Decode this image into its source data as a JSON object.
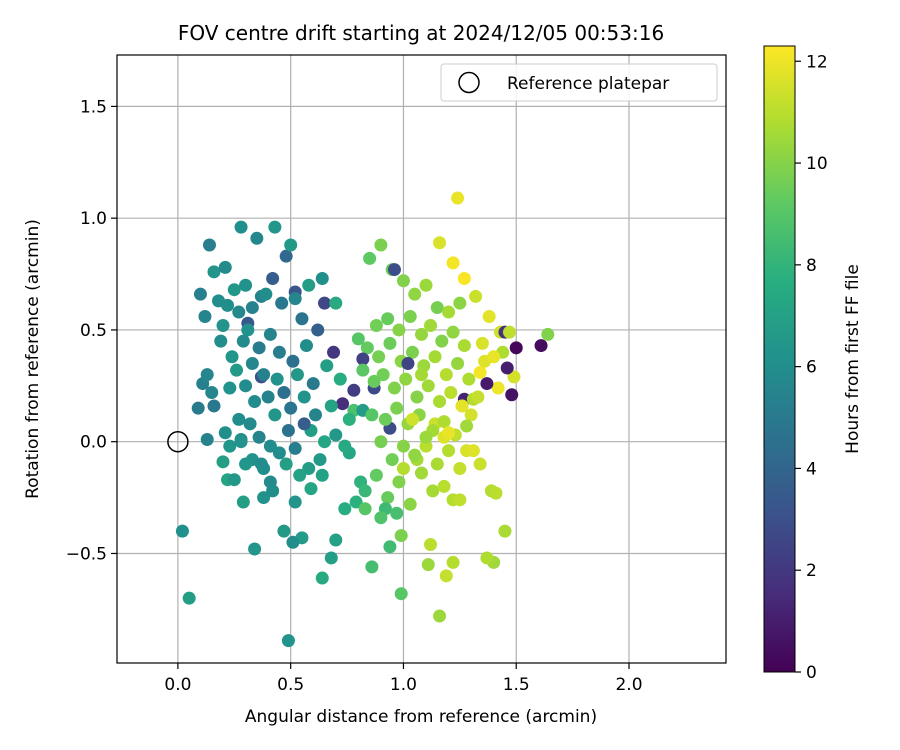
{
  "chart_data": {
    "type": "scatter",
    "title": "FOV centre drift starting at 2024/12/05 00:53:16",
    "xlabel": "Angular distance from reference (arcmin)",
    "ylabel": "Rotation from reference (arcmin)",
    "xlim": [
      -0.27,
      2.43
    ],
    "ylim": [
      -0.99,
      1.73
    ],
    "xticks": [
      0.0,
      0.5,
      1.0,
      1.5,
      2.0
    ],
    "xtick_labels": [
      "0.0",
      "0.5",
      "1.0",
      "1.5",
      "2.0"
    ],
    "yticks": [
      -0.5,
      0.0,
      0.5,
      1.0,
      1.5
    ],
    "ytick_labels": [
      "−0.5",
      "0.0",
      "0.5",
      "1.0",
      "1.5"
    ],
    "grid": true,
    "legend": {
      "position": "top-right",
      "entries": [
        "Reference platepar"
      ]
    },
    "reference_point": {
      "x": 0.0,
      "y": 0.0
    },
    "colorbar": {
      "label": "Hours from first FF file",
      "range": [
        0,
        12.3
      ],
      "ticks": [
        0,
        2,
        4,
        6,
        8,
        10,
        12
      ],
      "tick_labels": [
        "0",
        "2",
        "4",
        "6",
        "8",
        "10",
        "12"
      ],
      "colormap": "viridis"
    },
    "series": [
      {
        "x": [
          0.14,
          0.16,
          0.21,
          0.28,
          0.35,
          0.43,
          0.5,
          0.48,
          0.42,
          0.37,
          0.3,
          0.25,
          0.22,
          0.18,
          0.1,
          0.12,
          0.2,
          0.27,
          0.33,
          0.39,
          0.46,
          0.52,
          0.58,
          0.64,
          0.7,
          0.31,
          0.29,
          0.41,
          0.55,
          0.62,
          0.36,
          0.24,
          0.19,
          0.45,
          0.51,
          0.57,
          0.33,
          0.38,
          0.44,
          0.26,
          0.3,
          0.47,
          0.53,
          0.6,
          0.66,
          0.72,
          0.4,
          0.34,
          0.23,
          0.15,
          0.5,
          0.56,
          0.61,
          0.68,
          0.76,
          0.82,
          0.27,
          0.32,
          0.43,
          0.49,
          0.36,
          0.41,
          0.59,
          0.65,
          0.7,
          0.74,
          0.21,
          0.28,
          0.45,
          0.52,
          0.63,
          0.48,
          0.38,
          0.3,
          0.54,
          0.58
        ],
        "y": [
          0.88,
          0.76,
          0.78,
          0.96,
          0.91,
          0.96,
          0.88,
          0.83,
          0.73,
          0.65,
          0.7,
          0.68,
          0.61,
          0.63,
          0.66,
          0.56,
          0.52,
          0.58,
          0.6,
          0.66,
          0.62,
          0.64,
          0.7,
          0.73,
          0.62,
          0.5,
          0.45,
          0.48,
          0.55,
          0.5,
          0.42,
          0.38,
          0.45,
          0.4,
          0.36,
          0.43,
          0.35,
          0.3,
          0.28,
          0.32,
          0.25,
          0.22,
          0.3,
          0.26,
          0.34,
          0.28,
          0.2,
          0.18,
          0.24,
          0.22,
          0.15,
          0.2,
          0.12,
          0.16,
          0.1,
          0.14,
          0.1,
          0.08,
          0.12,
          0.05,
          0.02,
          -0.02,
          0.05,
          0.0,
          0.03,
          -0.02,
          0.04,
          0.0,
          -0.05,
          -0.03,
          -0.08,
          -0.1,
          -0.12,
          -0.1,
          -0.15,
          -0.12
        ],
        "colors": [
          5.2,
          6.3,
          5.8,
          6.1,
          5.6,
          6.4,
          6.6,
          4.2,
          3.6,
          5.4,
          6.2,
          6.5,
          6.0,
          5.9,
          5.3,
          5.5,
          6.3,
          5.7,
          5.4,
          6.0,
          4.9,
          5.6,
          6.8,
          6.1,
          7.4,
          6.2,
          5.8,
          5.5,
          4.7,
          3.8,
          5.1,
          6.4,
          5.9,
          5.2,
          4.5,
          6.0,
          5.6,
          5.3,
          6.2,
          6.6,
          5.9,
          4.4,
          6.5,
          5.0,
          6.9,
          7.6,
          5.4,
          5.9,
          6.2,
          5.6,
          4.8,
          6.3,
          5.5,
          7.1,
          7.8,
          6.7,
          6.0,
          5.8,
          6.4,
          4.6,
          5.5,
          5.9,
          6.8,
          7.2,
          6.5,
          7.4,
          6.1,
          6.3,
          5.9,
          5.2,
          6.6,
          6.9,
          6.1,
          6.4,
          7.0,
          6.8
        ]
      },
      {
        "x": [
          0.02,
          0.13,
          0.05,
          0.09,
          0.11,
          0.13,
          0.16,
          0.2,
          0.22,
          0.25,
          0.29,
          0.34,
          0.38,
          0.42,
          0.47,
          0.49,
          0.51,
          0.55,
          0.59,
          0.64,
          0.68,
          0.7,
          0.74,
          0.79,
          0.83,
          0.86,
          0.9,
          0.94,
          0.97,
          0.99,
          0.28,
          0.37,
          0.52,
          0.81,
          0.92,
          0.76,
          0.64,
          0.33,
          0.23,
          0.41
        ],
        "y": [
          -0.4,
          0.01,
          -0.7,
          0.15,
          0.26,
          0.3,
          0.16,
          -0.09,
          -0.17,
          -0.17,
          -0.27,
          -0.48,
          -0.25,
          -0.22,
          -0.4,
          -0.89,
          -0.45,
          -0.43,
          -0.21,
          -0.61,
          -0.52,
          -0.44,
          -0.3,
          -0.27,
          -0.22,
          -0.56,
          -0.34,
          -0.47,
          -0.32,
          -0.68,
          0.01,
          -0.1,
          -0.27,
          -0.18,
          -0.3,
          -0.05,
          -0.15,
          -0.08,
          -0.02,
          -0.18
        ],
        "colors": [
          6.1,
          5.4,
          6.8,
          5.0,
          5.3,
          5.6,
          4.9,
          6.9,
          7.1,
          6.5,
          6.8,
          6.4,
          6.2,
          6.0,
          6.6,
          6.3,
          6.0,
          6.7,
          7.2,
          7.4,
          6.9,
          7.0,
          7.6,
          7.8,
          8.2,
          8.5,
          8.8,
          8.4,
          8.6,
          9.0,
          6.0,
          5.9,
          6.3,
          7.9,
          8.3,
          7.3,
          7.0,
          6.2,
          6.4,
          5.8
        ]
      },
      {
        "x": [
          0.9,
          0.95,
          1.0,
          1.05,
          1.1,
          1.15,
          1.2,
          1.25,
          0.85,
          0.88,
          0.93,
          0.98,
          1.03,
          1.08,
          1.12,
          1.17,
          1.22,
          1.27,
          0.8,
          0.84,
          0.89,
          0.94,
          0.99,
          1.04,
          1.09,
          1.14,
          1.19,
          1.24,
          1.29,
          0.82,
          0.87,
          0.91,
          0.96,
          1.01,
          1.06,
          1.11,
          1.16,
          1.21,
          1.26,
          1.31,
          0.78,
          0.86,
          0.92,
          0.97,
          1.02,
          1.07,
          1.13,
          1.18,
          1.23,
          1.28,
          0.9,
          1.0,
          1.1,
          1.2,
          0.95,
          1.05,
          1.15,
          1.25,
          0.88,
          0.98,
          1.08,
          1.18,
          0.93,
          1.03,
          1.13,
          0.83,
          0.99,
          1.11,
          1.22
        ],
        "y": [
          0.88,
          0.77,
          0.72,
          0.66,
          0.7,
          0.6,
          0.58,
          0.62,
          0.82,
          0.52,
          0.55,
          0.5,
          0.56,
          0.48,
          0.52,
          0.45,
          0.49,
          0.43,
          0.46,
          0.42,
          0.38,
          0.44,
          0.36,
          0.4,
          0.34,
          0.38,
          0.3,
          0.35,
          0.28,
          0.32,
          0.27,
          0.3,
          0.24,
          0.28,
          0.2,
          0.25,
          0.18,
          0.22,
          0.16,
          0.19,
          0.14,
          0.12,
          0.1,
          0.15,
          0.08,
          0.12,
          0.05,
          0.09,
          0.03,
          0.07,
          0.0,
          -0.02,
          0.02,
          -0.04,
          -0.08,
          -0.06,
          -0.1,
          -0.12,
          -0.15,
          -0.18,
          -0.14,
          -0.2,
          -0.25,
          -0.28,
          -0.22,
          -0.3,
          -0.42,
          -0.55,
          -0.26
        ],
        "colors": [
          9.8,
          9.5,
          9.9,
          10.2,
          10.4,
          9.7,
          10.6,
          10.1,
          9.2,
          9.6,
          9.4,
          10.0,
          9.8,
          10.3,
          10.5,
          9.9,
          10.2,
          10.7,
          9.0,
          9.3,
          9.7,
          9.5,
          10.1,
          9.8,
          10.4,
          10.6,
          10.9,
          10.3,
          10.8,
          9.1,
          9.4,
          9.6,
          9.9,
          10.2,
          10.0,
          10.5,
          10.7,
          11.0,
          10.4,
          10.9,
          8.7,
          9.0,
          9.5,
          9.8,
          10.3,
          10.1,
          10.6,
          10.8,
          11.1,
          10.5,
          9.7,
          10.0,
          10.4,
          10.9,
          9.6,
          10.2,
          10.7,
          11.2,
          9.3,
          9.9,
          10.5,
          11.0,
          9.4,
          10.1,
          10.6,
          9.0,
          9.8,
          10.4,
          10.9
        ]
      },
      {
        "x": [
          1.24,
          1.16,
          1.22,
          1.27,
          1.32,
          1.38,
          1.43,
          1.47,
          1.35,
          1.4,
          1.44,
          1.49,
          1.36,
          1.42,
          1.33,
          1.26,
          1.3,
          1.14,
          1.18,
          1.1,
          1.06,
          1.0,
          1.04,
          1.2,
          1.28,
          1.34,
          1.39,
          1.45,
          1.4,
          1.37,
          1.41,
          1.34,
          1.22,
          1.19,
          1.12,
          1.16,
          1.25,
          1.31,
          1.08,
          1.64
        ],
        "y": [
          1.09,
          0.89,
          0.8,
          0.73,
          0.65,
          0.56,
          0.49,
          0.49,
          0.44,
          0.38,
          0.4,
          0.29,
          0.36,
          0.24,
          0.2,
          0.16,
          0.12,
          0.08,
          0.02,
          -0.02,
          -0.08,
          -0.12,
          0.1,
          0.04,
          -0.04,
          -0.1,
          -0.22,
          -0.4,
          -0.54,
          -0.52,
          -0.23,
          0.31,
          -0.54,
          -0.6,
          -0.46,
          -0.78,
          -0.26,
          -0.04,
          0.3,
          0.48
        ],
        "colors": [
          11.9,
          11.6,
          12.1,
          12.2,
          11.3,
          11.8,
          11.4,
          11.1,
          11.6,
          11.9,
          10.8,
          11.5,
          11.7,
          12.0,
          11.2,
          11.8,
          11.5,
          11.3,
          11.7,
          11.0,
          10.6,
          10.9,
          11.4,
          11.9,
          11.6,
          11.3,
          10.9,
          10.7,
          10.5,
          10.8,
          11.0,
          12.1,
          10.9,
          11.2,
          11.0,
          10.4,
          11.1,
          11.7,
          10.6,
          9.9
        ]
      },
      {
        "x": [
          1.61,
          1.5,
          1.46,
          1.48,
          1.37,
          1.45,
          0.96,
          0.82,
          0.87,
          0.73,
          0.78,
          0.65,
          0.52,
          0.31,
          0.37,
          0.94,
          0.69,
          0.56,
          1.02,
          1.27
        ],
        "y": [
          0.43,
          0.42,
          0.33,
          0.21,
          0.26,
          0.49,
          0.77,
          0.37,
          0.24,
          0.17,
          0.23,
          0.62,
          0.67,
          0.53,
          0.29,
          0.06,
          0.4,
          0.08,
          0.35,
          0.19
        ],
        "colors": [
          0.4,
          0.2,
          1.0,
          0.6,
          0.9,
          1.8,
          2.9,
          2.4,
          2.7,
          1.6,
          2.2,
          2.6,
          3.2,
          3.4,
          3.0,
          2.8,
          2.0,
          3.6,
          2.5,
          1.2
        ]
      }
    ]
  }
}
